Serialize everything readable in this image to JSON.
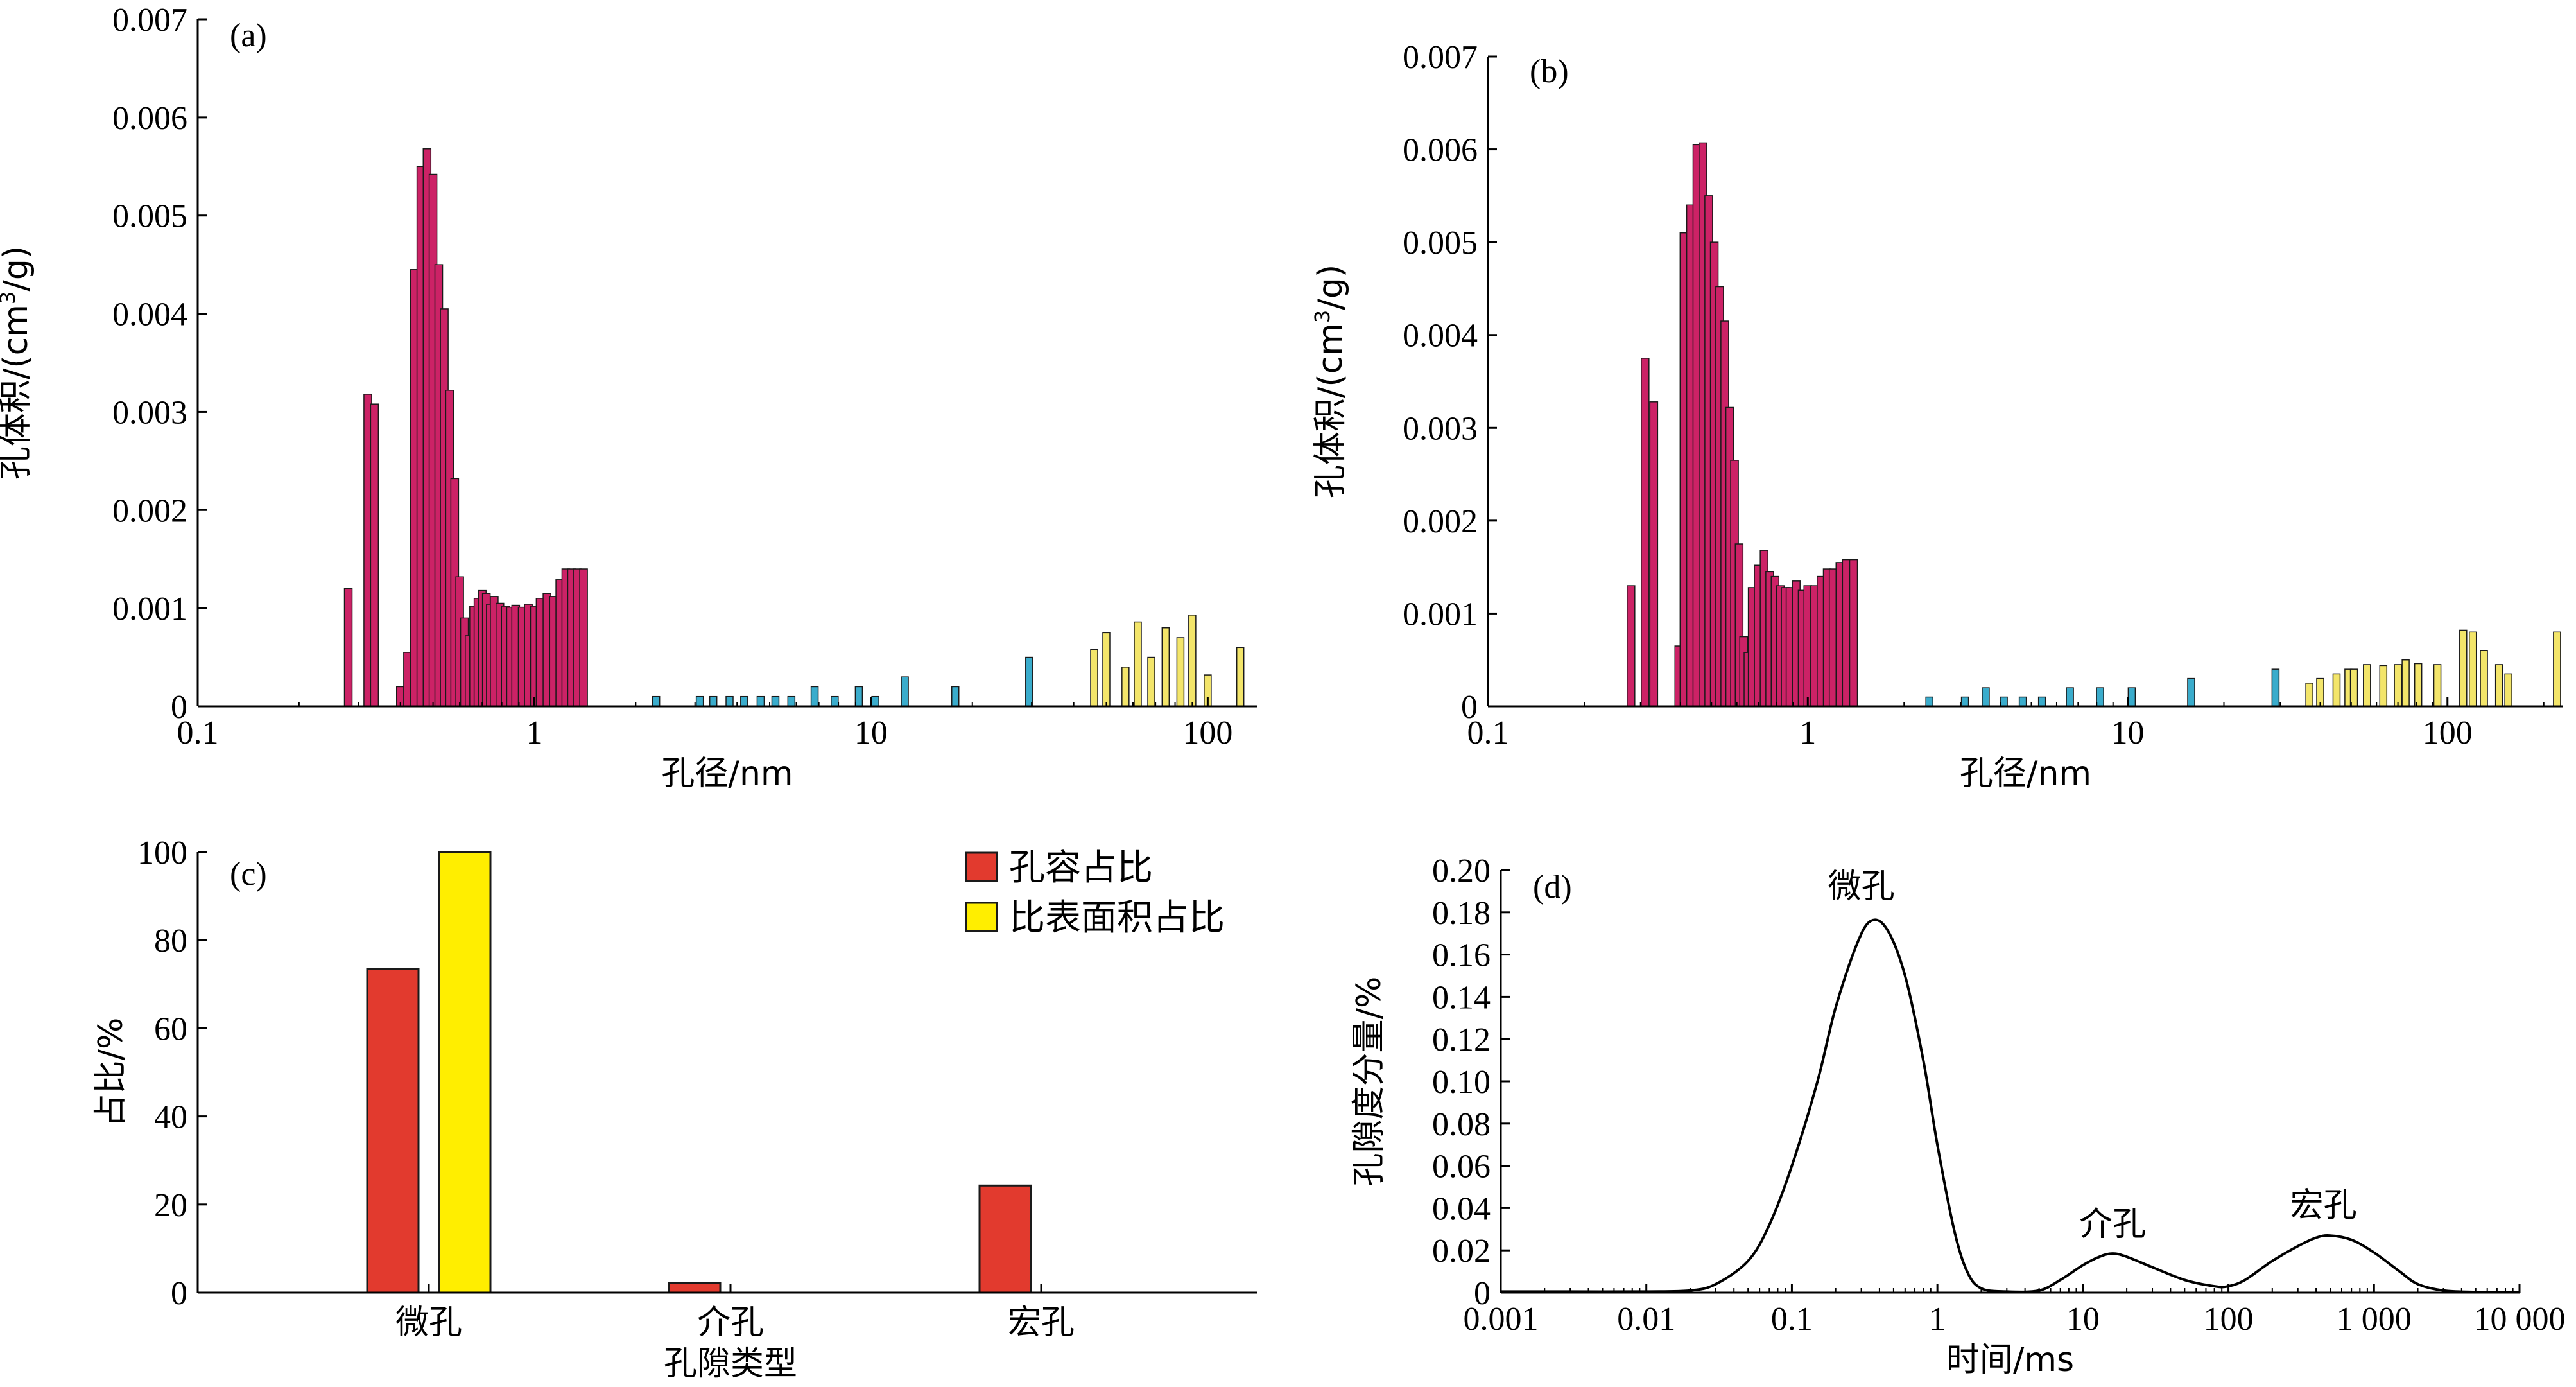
{
  "colors": {
    "micro": "#cc2266",
    "meso": "#3aaccc",
    "macro": "#f3e56a",
    "vol_ratio": "#e23a2e",
    "area_ratio": "#ffee00",
    "axis": "#000000"
  },
  "chart_data": [
    {
      "id": "a",
      "type": "bar",
      "tag": "(a)",
      "xlabel": "孔径/nm",
      "ylabel_main": "孔体积/(cm",
      "ylabel_sup": "3",
      "ylabel_tail": "/g)",
      "xscale": "log",
      "xlim": [
        0.1,
        140
      ],
      "ylim": [
        0,
        0.007
      ],
      "xticks": [
        {
          "v": 0.1,
          "label": "0.1"
        },
        {
          "v": 1,
          "label": "1"
        },
        {
          "v": 10,
          "label": "10"
        },
        {
          "v": 100,
          "label": "100"
        }
      ],
      "yticks": [
        {
          "v": 0,
          "label": "0"
        },
        {
          "v": 0.001,
          "label": "0.001"
        },
        {
          "v": 0.002,
          "label": "0.002"
        },
        {
          "v": 0.003,
          "label": "0.003"
        },
        {
          "v": 0.004,
          "label": "0.004"
        },
        {
          "v": 0.005,
          "label": "0.005"
        },
        {
          "v": 0.006,
          "label": "0.006"
        },
        {
          "v": 0.007,
          "label": "0.007"
        }
      ],
      "bar_groups": [
        {
          "class": "micro",
          "x": [
            0.28,
            0.32,
            0.335,
            0.4,
            0.42,
            0.44,
            0.46,
            0.48,
            0.5,
            0.52,
            0.54,
            0.56,
            0.58,
            0.6,
            0.62,
            0.64,
            0.66,
            0.68,
            0.7,
            0.72,
            0.74,
            0.76,
            0.79,
            0.82,
            0.85,
            0.88,
            0.92,
            0.96,
            1.0,
            1.04,
            1.09,
            1.14,
            1.19,
            1.24,
            1.29,
            1.34,
            1.4
          ],
          "values": [
            0.0012,
            0.00318,
            0.00308,
            0.0002,
            0.00055,
            0.00445,
            0.0055,
            0.00568,
            0.00542,
            0.0045,
            0.00405,
            0.00322,
            0.00232,
            0.00132,
            0.0009,
            0.00072,
            0.00102,
            0.0011,
            0.00118,
            0.00115,
            0.00104,
            0.00112,
            0.00105,
            0.00102,
            0.00101,
            0.00103,
            0.00101,
            0.00104,
            0.00102,
            0.0011,
            0.00115,
            0.00112,
            0.00129,
            0.0014,
            0.0014,
            0.0014,
            0.0014
          ]
        },
        {
          "class": "meso",
          "x": [
            2.3,
            3.1,
            3.4,
            3.8,
            4.2,
            4.7,
            5.2,
            5.8,
            6.8,
            7.8,
            9.2,
            10.3,
            12.6,
            17.8,
            29.5
          ],
          "values": [
            0.0001,
            0.0001,
            0.0001,
            0.0001,
            0.0001,
            0.0001,
            0.0001,
            0.0001,
            0.0002,
            0.0001,
            0.0002,
            0.0001,
            0.0003,
            0.0002,
            0.0005
          ]
        },
        {
          "class": "macro",
          "x": [
            46,
            50,
            57,
            62,
            68,
            75,
            83,
            90,
            100,
            125
          ],
          "values": [
            0.00058,
            0.00075,
            0.0004,
            0.00086,
            0.0005,
            0.0008,
            0.0007,
            0.00093,
            0.00032,
            0.0006
          ]
        }
      ]
    },
    {
      "id": "b",
      "type": "bar",
      "tag": "(b)",
      "xlabel": "孔径/nm",
      "ylabel_main": "孔体积/(cm",
      "ylabel_sup": "3",
      "ylabel_tail": "/g)",
      "xscale": "log",
      "xlim": [
        0.1,
        230
      ],
      "ylim": [
        0,
        0.007
      ],
      "xticks": [
        {
          "v": 0.1,
          "label": "0.1"
        },
        {
          "v": 1,
          "label": "1"
        },
        {
          "v": 10,
          "label": "10"
        },
        {
          "v": 100,
          "label": "100"
        }
      ],
      "yticks": [
        {
          "v": 0,
          "label": "0"
        },
        {
          "v": 0.001,
          "label": "0.001"
        },
        {
          "v": 0.002,
          "label": "0.002"
        },
        {
          "v": 0.003,
          "label": "0.003"
        },
        {
          "v": 0.004,
          "label": "0.004"
        },
        {
          "v": 0.005,
          "label": "0.005"
        },
        {
          "v": 0.006,
          "label": "0.006"
        },
        {
          "v": 0.007,
          "label": "0.007"
        }
      ],
      "bar_groups": [
        {
          "class": "micro",
          "x": [
            0.28,
            0.31,
            0.33,
            0.395,
            0.41,
            0.43,
            0.45,
            0.47,
            0.49,
            0.51,
            0.53,
            0.55,
            0.57,
            0.59,
            0.61,
            0.63,
            0.65,
            0.67,
            0.7,
            0.73,
            0.76,
            0.79,
            0.82,
            0.85,
            0.88,
            0.92,
            0.96,
            1.0,
            1.05,
            1.1,
            1.15,
            1.2,
            1.26,
            1.32,
            1.39
          ],
          "values": [
            0.0013,
            0.00375,
            0.00328,
            0.00065,
            0.0051,
            0.0054,
            0.00605,
            0.00607,
            0.0055,
            0.005,
            0.00452,
            0.00415,
            0.00322,
            0.00265,
            0.00175,
            0.00075,
            0.00058,
            0.00128,
            0.00152,
            0.00168,
            0.00145,
            0.0014,
            0.0013,
            0.00128,
            0.00128,
            0.00135,
            0.00125,
            0.0013,
            0.0013,
            0.0014,
            0.00148,
            0.00148,
            0.00155,
            0.00158,
            0.00158
          ]
        },
        {
          "class": "meso",
          "x": [
            2.4,
            3.1,
            3.6,
            4.1,
            4.7,
            5.4,
            6.6,
            8.2,
            10.3,
            15.8,
            29.0
          ],
          "values": [
            0.0001,
            0.0001,
            0.0002,
            0.0001,
            0.0001,
            0.0001,
            0.0002,
            0.0002,
            0.0002,
            0.0003,
            0.0004
          ]
        },
        {
          "class": "macro",
          "x": [
            37,
            40,
            45,
            49,
            51,
            56,
            63,
            70,
            74,
            81,
            93,
            112,
            120,
            130,
            145,
            155,
            220
          ],
          "values": [
            0.00025,
            0.0003,
            0.00035,
            0.0004,
            0.0004,
            0.00045,
            0.00044,
            0.00045,
            0.0005,
            0.00046,
            0.00045,
            0.00082,
            0.0008,
            0.0006,
            0.00045,
            0.00035,
            0.0008
          ]
        }
      ]
    },
    {
      "id": "c",
      "type": "bar",
      "tag": "(c)",
      "xlabel": "孔隙类型",
      "ylabel": "占比/%",
      "categories": [
        "微孔",
        "介孔",
        "宏孔"
      ],
      "ylim": [
        0,
        100
      ],
      "yticks": [
        {
          "v": 0,
          "label": "0"
        },
        {
          "v": 20,
          "label": "20"
        },
        {
          "v": 40,
          "label": "40"
        },
        {
          "v": 60,
          "label": "60"
        },
        {
          "v": 80,
          "label": "80"
        },
        {
          "v": 100,
          "label": "100"
        }
      ],
      "legend_position": "top-right",
      "series": [
        {
          "name": "孔容占比",
          "color_key": "vol_ratio",
          "values": [
            73.5,
            2.2,
            24.3
          ]
        },
        {
          "name": "比表面积占比",
          "color_key": "area_ratio",
          "values": [
            100,
            0,
            0
          ]
        }
      ]
    },
    {
      "id": "d",
      "type": "line",
      "tag": "(d)",
      "xlabel": "时间/ms",
      "ylabel": "孔隙度分量/%",
      "xscale": "log",
      "xlim": [
        0.001,
        10000
      ],
      "ylim": [
        0,
        0.2
      ],
      "xticks": [
        {
          "v": 0.001,
          "label": "0.001"
        },
        {
          "v": 0.01,
          "label": "0.01"
        },
        {
          "v": 0.1,
          "label": "0.1"
        },
        {
          "v": 1,
          "label": "1"
        },
        {
          "v": 10,
          "label": "10"
        },
        {
          "v": 100,
          "label": "100"
        },
        {
          "v": 1000,
          "label": "1 000"
        },
        {
          "v": 10000,
          "label": "10 000"
        }
      ],
      "yticks": [
        {
          "v": 0,
          "label": "0"
        },
        {
          "v": 0.02,
          "label": "0.02"
        },
        {
          "v": 0.04,
          "label": "0.04"
        },
        {
          "v": 0.06,
          "label": "0.06"
        },
        {
          "v": 0.08,
          "label": "0.08"
        },
        {
          "v": 0.1,
          "label": "0.10"
        },
        {
          "v": 0.12,
          "label": "0.12"
        },
        {
          "v": 0.14,
          "label": "0.14"
        },
        {
          "v": 0.16,
          "label": "0.16"
        },
        {
          "v": 0.18,
          "label": "0.18"
        },
        {
          "v": 0.2,
          "label": "0.20"
        }
      ],
      "series": [
        {
          "x": [
            0.001,
            0.003,
            0.01,
            0.02,
            0.03,
            0.05,
            0.07,
            0.1,
            0.15,
            0.2,
            0.28,
            0.35,
            0.45,
            0.6,
            0.8,
            1.0,
            1.3,
            1.6,
            2.0,
            3.0,
            5.0,
            7.0,
            10,
            13,
            16,
            20,
            30,
            50,
            80,
            100,
            130,
            200,
            300,
            400,
            500,
            700,
            1000,
            1500,
            2000,
            3000,
            5000,
            10000
          ],
          "values": [
            0.0005,
            0.0005,
            0.0005,
            0.001,
            0.004,
            0.015,
            0.032,
            0.06,
            0.1,
            0.135,
            0.165,
            0.176,
            0.172,
            0.15,
            0.11,
            0.07,
            0.03,
            0.01,
            0.002,
            0.0005,
            0.001,
            0.006,
            0.013,
            0.017,
            0.0185,
            0.017,
            0.012,
            0.006,
            0.003,
            0.003,
            0.006,
            0.015,
            0.022,
            0.026,
            0.027,
            0.025,
            0.019,
            0.01,
            0.004,
            0.001,
            0.0003,
            0.0002
          ]
        }
      ],
      "annotations": [
        {
          "text": "微孔",
          "x": 0.3,
          "y": 0.187
        },
        {
          "text": "介孔",
          "x": 16,
          "y": 0.027
        },
        {
          "text": "宏孔",
          "x": 450,
          "y": 0.036
        }
      ]
    }
  ]
}
